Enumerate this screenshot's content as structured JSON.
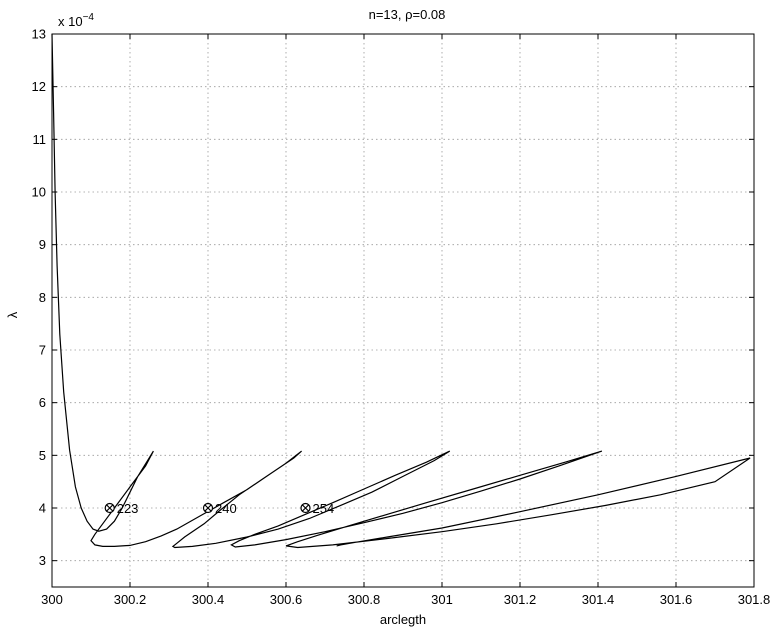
{
  "chart_data": {
    "type": "line",
    "title": "n=13, ρ=0.08",
    "xlabel": "arclegth",
    "ylabel": "λ",
    "y_exponent_label": "x 10",
    "y_exponent": "−4",
    "xlim": [
      300,
      301.8
    ],
    "ylim": [
      2.5,
      13
    ],
    "grid": true,
    "x_ticks": [
      "300",
      "300.2",
      "300.4",
      "300.6",
      "300.8",
      "301",
      "301.2",
      "301.4",
      "301.6",
      "301.8"
    ],
    "y_ticks": [
      "3",
      "4",
      "5",
      "6",
      "7",
      "8",
      "9",
      "10",
      "11",
      "12",
      "13"
    ],
    "series": [
      {
        "x": [
          300.0,
          300.004,
          300.008,
          300.013,
          300.02,
          300.03,
          300.045,
          300.06,
          300.075,
          300.09,
          300.105,
          300.12,
          300.14,
          300.16,
          300.18,
          300.2,
          300.22,
          300.245,
          300.26,
          300.24,
          300.2,
          300.16,
          300.13,
          300.11,
          300.1,
          300.11,
          300.13,
          300.16,
          300.2,
          300.24,
          300.28,
          300.32,
          300.38,
          300.44,
          300.5,
          300.56,
          300.62,
          300.64,
          300.6,
          300.54,
          300.48,
          300.43,
          300.39,
          300.34,
          300.32,
          300.31,
          300.315,
          300.36,
          300.42,
          300.5,
          300.58,
          300.66,
          300.74,
          300.82,
          300.9,
          300.98,
          301.02,
          300.96,
          300.88,
          300.8,
          300.72,
          300.64,
          300.58,
          300.52,
          300.48,
          300.46,
          300.47,
          300.52,
          300.6,
          300.7,
          300.8,
          300.9,
          301.0,
          301.1,
          301.2,
          301.3,
          301.41,
          301.32,
          301.2,
          301.08,
          300.96,
          300.86,
          300.76,
          300.68,
          300.63,
          300.6,
          300.63,
          300.72,
          300.86,
          301.0,
          301.14,
          301.28,
          301.42,
          301.56,
          301.7,
          301.79,
          301.6,
          301.4,
          301.2,
          301.0,
          300.86,
          300.78,
          300.74,
          300.73,
          300.735
        ],
        "y": [
          13.0,
          11.5,
          10.0,
          8.6,
          7.3,
          6.2,
          5.1,
          4.4,
          4.0,
          3.75,
          3.6,
          3.56,
          3.6,
          3.75,
          4.0,
          4.3,
          4.6,
          4.9,
          5.08,
          4.8,
          4.4,
          4.0,
          3.7,
          3.5,
          3.38,
          3.3,
          3.27,
          3.27,
          3.29,
          3.36,
          3.47,
          3.6,
          3.85,
          4.1,
          4.35,
          4.65,
          4.95,
          5.08,
          4.85,
          4.55,
          4.25,
          3.95,
          3.7,
          3.45,
          3.33,
          3.27,
          3.25,
          3.27,
          3.33,
          3.45,
          3.6,
          3.8,
          4.05,
          4.3,
          4.6,
          4.9,
          5.08,
          4.87,
          4.62,
          4.36,
          4.1,
          3.85,
          3.66,
          3.5,
          3.38,
          3.3,
          3.26,
          3.3,
          3.4,
          3.55,
          3.72,
          3.9,
          4.1,
          4.32,
          4.55,
          4.8,
          5.08,
          4.88,
          4.62,
          4.36,
          4.1,
          3.88,
          3.66,
          3.48,
          3.36,
          3.28,
          3.25,
          3.3,
          3.42,
          3.55,
          3.7,
          3.87,
          4.05,
          4.25,
          4.5,
          4.95,
          4.6,
          4.25,
          3.93,
          3.62,
          3.45,
          3.35,
          3.3,
          3.28,
          3.28
        ]
      }
    ],
    "markers": [
      {
        "x": 300.148,
        "y": 4.0,
        "label": "223"
      },
      {
        "x": 300.4,
        "y": 4.0,
        "label": "240"
      },
      {
        "x": 300.65,
        "y": 4.0,
        "label": "254"
      }
    ]
  }
}
